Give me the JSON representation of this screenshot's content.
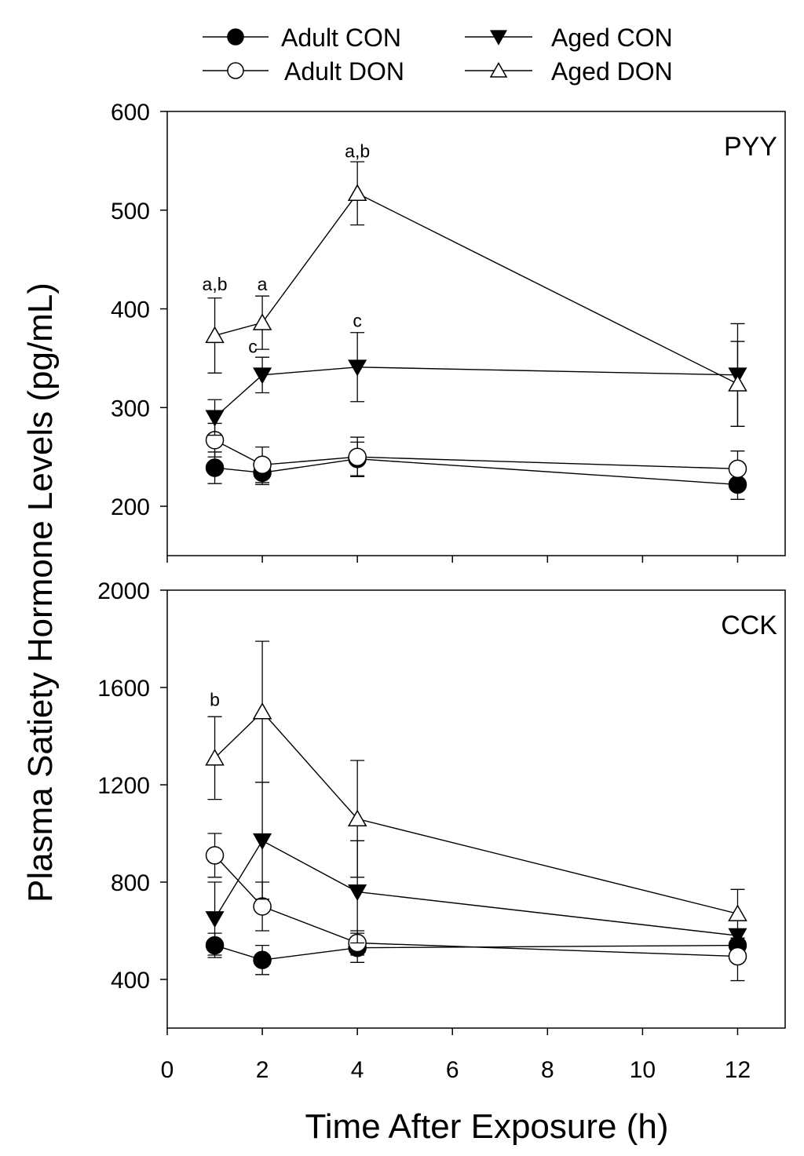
{
  "chart_data": {
    "type": "line",
    "xlabel": "Time After Exposure (h)",
    "ylabel": "Plasma Satiety Hormone Levels (pg/mL)",
    "xlim": [
      0,
      13
    ],
    "xticks": [
      0,
      2,
      4,
      6,
      8,
      10,
      12
    ],
    "x": [
      1,
      2,
      4,
      12
    ],
    "legend": [
      {
        "name": "Adult CON",
        "marker": "filled-circle"
      },
      {
        "name": "Adult DON",
        "marker": "open-circle"
      },
      {
        "name": "Aged CON",
        "marker": "filled-triangle-down"
      },
      {
        "name": "Aged DON",
        "marker": "open-triangle-up"
      }
    ],
    "panels": [
      {
        "label": "PYY",
        "ylim": [
          150,
          600
        ],
        "yticks": [
          200,
          300,
          400,
          500,
          600
        ],
        "series": [
          {
            "name": "Adult CON",
            "values": [
              239,
              234,
              248,
              222
            ],
            "errors": [
              16,
              12,
              17,
              15
            ]
          },
          {
            "name": "Adult DON",
            "values": [
              267,
              242,
              250,
              238
            ],
            "errors": [
              17,
              18,
              20,
              18
            ]
          },
          {
            "name": "Aged CON",
            "values": [
              290,
              333,
              341,
              333
            ],
            "errors": [
              18,
              18,
              35,
              52
            ]
          },
          {
            "name": "Aged DON",
            "values": [
              373,
              386,
              517,
              324
            ],
            "errors": [
              38,
              27,
              32,
              43
            ]
          }
        ],
        "annotations": [
          {
            "x": 1,
            "y": 425,
            "text": "a,b"
          },
          {
            "x": 2,
            "y": 425,
            "text": "a"
          },
          {
            "x": 4,
            "y": 560,
            "text": "a,b"
          },
          {
            "x": 1.8,
            "y": 362,
            "text": "c"
          },
          {
            "x": 4,
            "y": 388,
            "text": "c"
          }
        ]
      },
      {
        "label": "CCK",
        "ylim": [
          200,
          2000
        ],
        "yticks": [
          400,
          800,
          1200,
          1600,
          2000
        ],
        "series": [
          {
            "name": "Adult CON",
            "values": [
              540,
              480,
              530,
              540
            ],
            "errors": [
              50,
              60,
              60,
              30
            ]
          },
          {
            "name": "Adult DON",
            "values": [
              910,
              700,
              550,
              495
            ],
            "errors": [
              90,
              100,
              50,
              100
            ]
          },
          {
            "name": "Aged CON",
            "values": [
              650,
              970,
              760,
              580
            ],
            "errors": [
              150,
              240,
              210,
              20
            ]
          },
          {
            "name": "Aged DON",
            "values": [
              1310,
              1500,
              1060,
              670
            ],
            "errors": [
              170,
              290,
              240,
              100
            ]
          }
        ],
        "annotations": [
          {
            "x": 1,
            "y": 1550,
            "text": "b"
          }
        ]
      }
    ]
  }
}
